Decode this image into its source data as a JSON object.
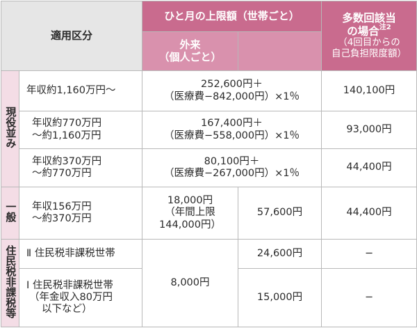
{
  "header": {
    "category": "適用区分",
    "monthly_limit": "ひと月の上限額（世帯ごと）",
    "outpatient": [
      "外来",
      "（個人ごと）"
    ],
    "multiple": [
      "多数回該当",
      "の場合"
    ],
    "multiple_note": "注2",
    "multiple_sub": [
      "（4回目からの",
      "自己負担限度額）"
    ]
  },
  "groups": {
    "active": "現役並み",
    "general": "一般",
    "exempt": "住民税非課税等"
  },
  "rows": {
    "r1": {
      "category": [
        "年収約1,160万円〜"
      ],
      "limit": [
        "252,600円＋",
        "（医療費−842,000円）×1％"
      ],
      "multiple": "140,100円"
    },
    "r2": {
      "category": [
        "年収約770万円",
        "〜約1,160万円"
      ],
      "limit": [
        "167,400円＋",
        "（医療費−558,000円）×1％"
      ],
      "multiple": "93,000円"
    },
    "r3": {
      "category": [
        "年収約370万円",
        "〜約770万円"
      ],
      "limit": [
        "80,100円＋",
        "（医療費−267,000円）×1％"
      ],
      "multiple": "44,400円"
    },
    "r4": {
      "category": [
        "年収156万円",
        "〜約370万円"
      ],
      "outpatient": [
        "18,000円",
        "（年間上限",
        "144,000円）"
      ],
      "limit": "57,600円",
      "multiple": "44,400円"
    },
    "r5": {
      "category": [
        "Ⅱ 住民税非課税世帯"
      ],
      "outpatient": "8,000円",
      "limit": "24,600円",
      "multiple": "−"
    },
    "r6": {
      "category": [
        "Ⅰ 住民税非課税世帯",
        "（年金収入80万円",
        "以下など）"
      ],
      "limit": "15,000円",
      "multiple": "−"
    }
  }
}
